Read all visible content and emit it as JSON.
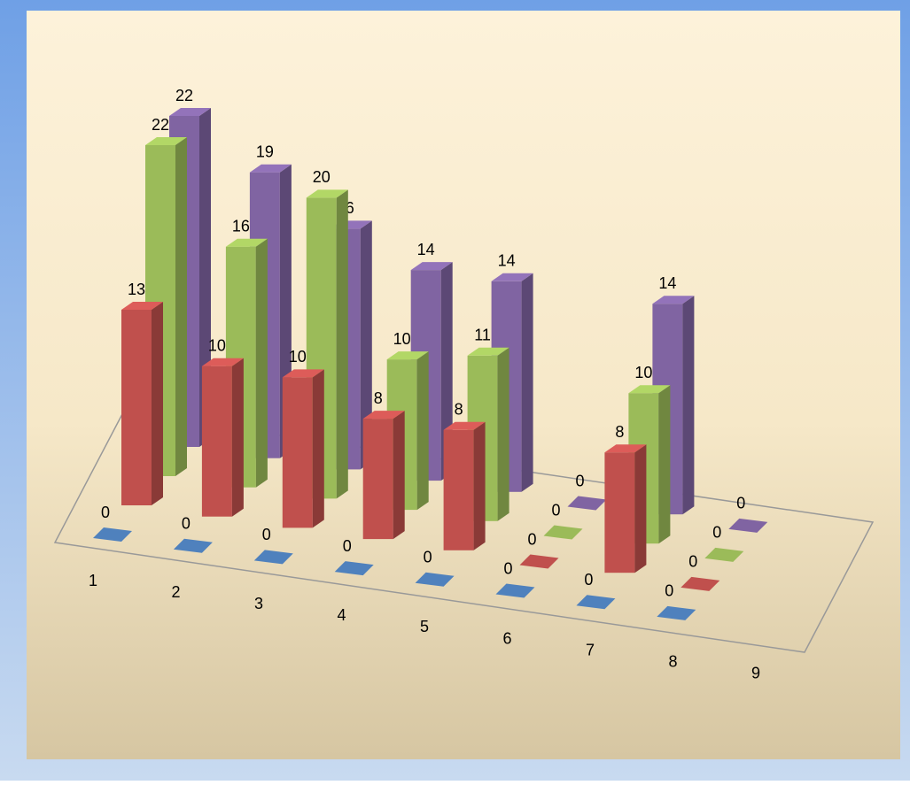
{
  "chart_data": {
    "type": "bar3d",
    "categories": [
      "1",
      "2",
      "3",
      "4",
      "5",
      "6",
      "7",
      "8",
      "9"
    ],
    "series": [
      {
        "color": "#4f81bd",
        "values": [
          0,
          0,
          0,
          0,
          0,
          0,
          0,
          0,
          null
        ]
      },
      {
        "color": "#c0504d",
        "values": [
          13,
          10,
          10,
          8,
          8,
          0,
          8,
          0,
          null
        ]
      },
      {
        "color": "#9bbb59",
        "values": [
          22,
          16,
          20,
          10,
          11,
          0,
          10,
          0,
          null
        ]
      },
      {
        "color": "#8064a2",
        "values": [
          22,
          19,
          16,
          14,
          14,
          0,
          14,
          0,
          null
        ]
      }
    ]
  }
}
